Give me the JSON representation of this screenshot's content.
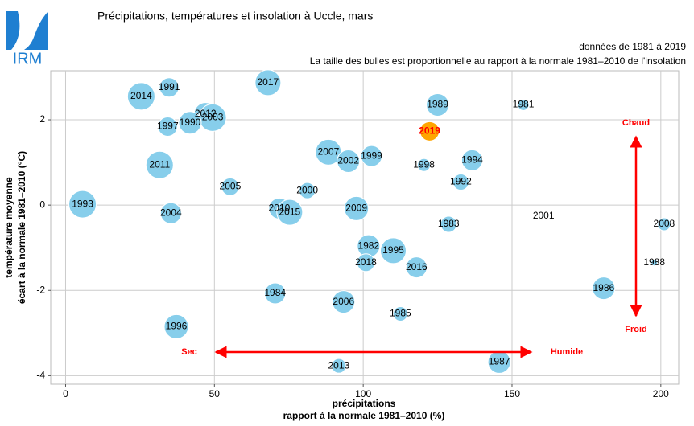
{
  "logo": "IRM",
  "chart_data": {
    "type": "scatter",
    "title": "Précipitations, températures et insolation à Uccle, mars",
    "notes": [
      "données de 1981 à 2019",
      "La taille des bulles est proportionnelle au rapport à la normale 1981–2010 de l'insolation"
    ],
    "xlabel": [
      "précipitations",
      "rapport à la normale 1981–2010 (%)"
    ],
    "ylabel": [
      "température moyenne",
      "écart à la normale 1981–2010 (°C)"
    ],
    "xlim": [
      -5,
      206
    ],
    "ylim": [
      -4.2,
      3.15
    ],
    "xticks": [
      0,
      50,
      100,
      150,
      200
    ],
    "yticks": [
      -4,
      -2,
      0,
      2
    ],
    "grid": true,
    "points": {
      "labels": [
        "2017",
        "1991",
        "2014",
        "2012",
        "2003",
        "1990",
        "1997",
        "1989",
        "1981",
        "2019",
        "2007",
        "2002",
        "1999",
        "1998",
        "1994",
        "2011",
        "1992",
        "2005",
        "2000",
        "1993",
        "2004",
        "2010",
        "2015",
        "2009",
        "2001",
        "1983",
        "2008",
        "1982",
        "1995",
        "2018",
        "2016",
        "1988",
        "1986",
        "1984",
        "2006",
        "1985",
        "1996",
        "1987",
        "2013"
      ],
      "x": [
        68.0,
        34.8,
        25.4,
        47.0,
        49.4,
        41.8,
        34.3,
        125.0,
        153.8,
        122.3,
        88.3,
        95.0,
        102.8,
        120.4,
        136.6,
        31.6,
        132.8,
        55.3,
        81.2,
        5.7,
        35.4,
        71.8,
        75.3,
        97.7,
        160.6,
        128.7,
        201.1,
        101.8,
        110.1,
        100.9,
        117.9,
        197.8,
        180.8,
        70.4,
        93.4,
        112.5,
        37.2,
        145.7,
        91.8
      ],
      "y": [
        2.87,
        2.76,
        2.55,
        2.14,
        2.05,
        1.93,
        1.84,
        2.35,
        2.35,
        1.73,
        1.24,
        1.03,
        1.15,
        0.94,
        1.05,
        0.94,
        0.54,
        0.43,
        0.34,
        0.02,
        -0.19,
        -0.08,
        -0.17,
        -0.08,
        -0.26,
        -0.45,
        -0.45,
        -0.96,
        -1.07,
        -1.35,
        -1.46,
        -1.35,
        -1.95,
        -2.07,
        -2.27,
        -2.55,
        -2.85,
        -3.68,
        -3.77
      ],
      "sizes": [
        16,
        12,
        17,
        14,
        17,
        14,
        12,
        14,
        7,
        12,
        16,
        14,
        13,
        8,
        13,
        17,
        10,
        11,
        10,
        17,
        13,
        13,
        16,
        15,
        1,
        10,
        8,
        14,
        16,
        11,
        13,
        4,
        14,
        13,
        14,
        9,
        15,
        14,
        9
      ],
      "color": "#87ceeb",
      "colors": [
        "#87ceeb",
        "#87ceeb",
        "#87ceeb",
        "#87ceeb",
        "#87ceeb",
        "#87ceeb",
        "#87ceeb",
        "#87ceeb",
        "#87ceeb",
        "#ffa500",
        "#87ceeb",
        "#87ceeb",
        "#87ceeb",
        "#87ceeb",
        "#87ceeb",
        "#87ceeb",
        "#87ceeb",
        "#87ceeb",
        "#87ceeb",
        "#87ceeb",
        "#87ceeb",
        "#87ceeb",
        "#87ceeb",
        "#87ceeb",
        "#87ceeb",
        "#87ceeb",
        "#87ceeb",
        "#87ceeb",
        "#87ceeb",
        "#87ceeb",
        "#87ceeb",
        "#87ceeb",
        "#87ceeb",
        "#87ceeb",
        "#87ceeb",
        "#87ceeb",
        "#87ceeb",
        "#87ceeb",
        "#87ceeb"
      ],
      "label_colors": [
        "#000000",
        "#000000",
        "#000000",
        "#000000",
        "#000000",
        "#000000",
        "#000000",
        "#000000",
        "#000000",
        "#ff0000",
        "#000000",
        "#000000",
        "#000000",
        "#000000",
        "#000000",
        "#000000",
        "#000000",
        "#000000",
        "#000000",
        "#000000",
        "#000000",
        "#000000",
        "#000000",
        "#000000",
        "#000000",
        "#000000",
        "#000000",
        "#000000",
        "#000000",
        "#000000",
        "#000000",
        "#000000",
        "#000000",
        "#000000",
        "#000000",
        "#000000",
        "#000000",
        "#000000",
        "#000000"
      ]
    },
    "annotations": [
      "Sec",
      "Humide",
      "Chaud",
      "Froid"
    ],
    "annotation_color": "#ff0000"
  }
}
